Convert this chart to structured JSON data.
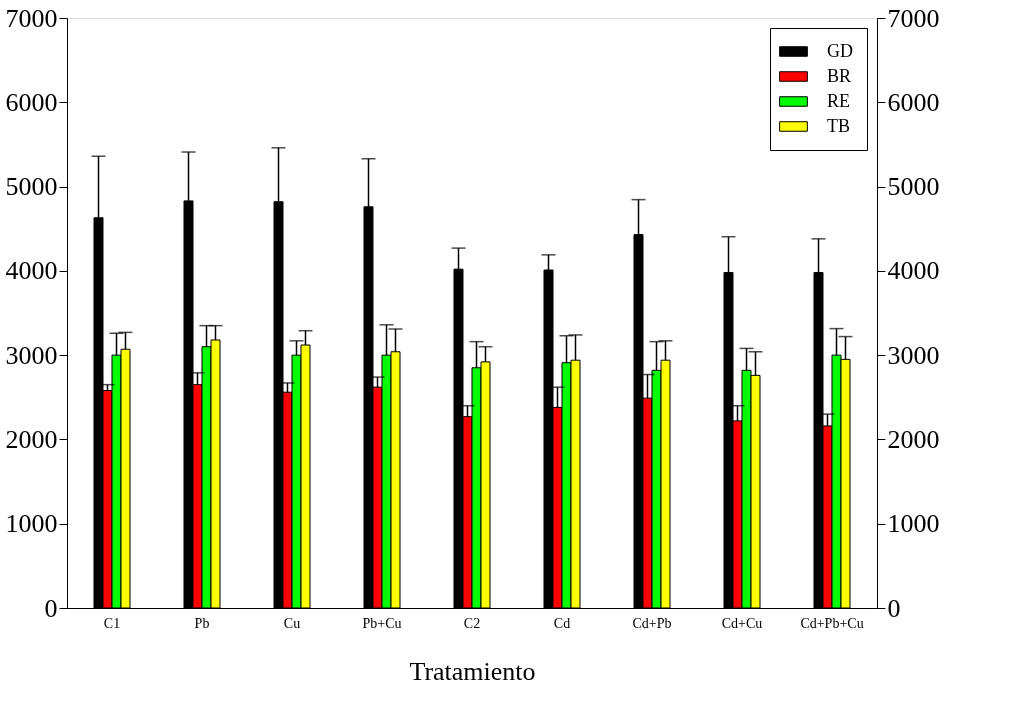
{
  "chart_data": {
    "type": "bar",
    "xlabel": "Tratamiento",
    "categories": [
      "C1",
      "Pb",
      "Cu",
      "Pb+Cu",
      "C2",
      "Cd",
      "Cd+Pb",
      "Cd+Cu",
      "Cd+Pb+Cu"
    ],
    "series": [
      {
        "name": "GD",
        "color": "#000000",
        "values": [
          4630,
          4830,
          4820,
          4760,
          4020,
          4010,
          4430,
          3980,
          3980
        ],
        "errors": [
          [
            4630,
            5360
          ],
          [
            4830,
            5410
          ],
          [
            4820,
            5460
          ],
          [
            4760,
            5330
          ],
          [
            4020,
            4270
          ],
          [
            4010,
            4190
          ],
          [
            4430,
            4845
          ],
          [
            3980,
            4405
          ],
          [
            3980,
            4380
          ]
        ]
      },
      {
        "name": "BR",
        "color": "#ff0000",
        "values": [
          2580,
          2650,
          2560,
          2620,
          2270,
          2380,
          2490,
          2220,
          2160
        ],
        "errors": [
          [
            2580,
            2650
          ],
          [
            2650,
            2790
          ],
          [
            2560,
            2670
          ],
          [
            2620,
            2740
          ],
          [
            2270,
            2400
          ],
          [
            2380,
            2620
          ],
          [
            2490,
            2770
          ],
          [
            2220,
            2400
          ],
          [
            2160,
            2300
          ]
        ]
      },
      {
        "name": "RE",
        "color": "#00ff00",
        "values": [
          3000,
          3100,
          3000,
          3000,
          2850,
          2910,
          2820,
          2820,
          3000
        ],
        "errors": [
          [
            3000,
            3260
          ],
          [
            3100,
            3350
          ],
          [
            3000,
            3170
          ],
          [
            3000,
            3360
          ],
          [
            2850,
            3160
          ],
          [
            2910,
            3230
          ],
          [
            2820,
            3160
          ],
          [
            2820,
            3080
          ],
          [
            3000,
            3315
          ]
        ]
      },
      {
        "name": "TB",
        "color": "#ffff00",
        "values": [
          3070,
          3180,
          3120,
          3040,
          2920,
          2940,
          2940,
          2760,
          2950
        ],
        "errors": [
          [
            3070,
            3270
          ],
          [
            3180,
            3350
          ],
          [
            3120,
            3290
          ],
          [
            3040,
            3310
          ],
          [
            2920,
            3100
          ],
          [
            2940,
            3240
          ],
          [
            2940,
            3170
          ],
          [
            2760,
            3040
          ],
          [
            2950,
            3220
          ]
        ]
      }
    ],
    "ylim": [
      0,
      7000
    ],
    "yticks": [
      0,
      1000,
      2000,
      3000,
      4000,
      5000,
      6000,
      7000
    ],
    "y2lim": [
      0,
      7000
    ],
    "y2ticks": [
      0,
      1000,
      2000,
      3000,
      4000,
      5000,
      6000,
      7000
    ],
    "legend": "top right"
  }
}
